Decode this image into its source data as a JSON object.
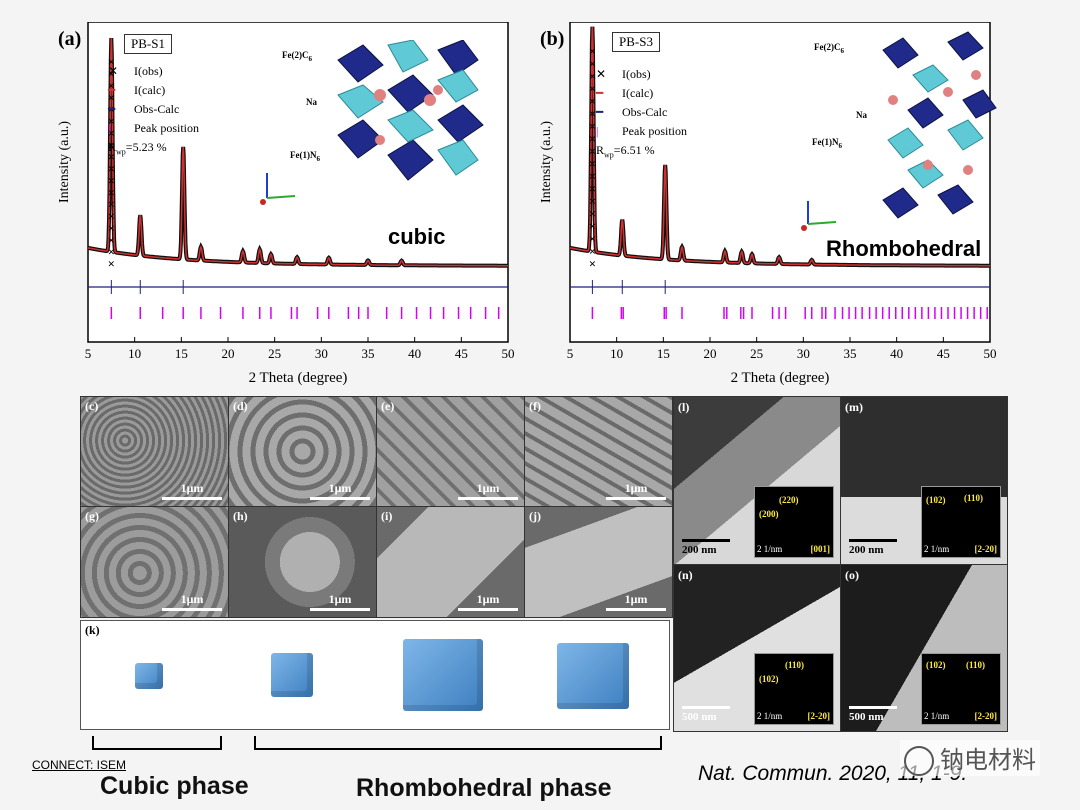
{
  "panels": {
    "a": {
      "letter": "(a)",
      "sample": "PB-S1",
      "legend": [
        "I(obs)",
        "I(calc)",
        "Obs-Calc",
        "Peak position"
      ],
      "rwp_label": "R",
      "rwp_sub": "wp",
      "rwp_value": "=5.23 %",
      "structure_labels": [
        "Fe(2)C",
        "6",
        "Na",
        "Fe(1)N",
        "6"
      ],
      "phase_label": "cubic",
      "ylabel": "Intensity (a.u.)",
      "xlabel": "2 Theta (degree)"
    },
    "b": {
      "letter": "(b)",
      "sample": "PB-S3",
      "legend": [
        "I(obs)",
        "I(calc)",
        "Obs-Calc",
        "Peak position"
      ],
      "rwp_label": "R",
      "rwp_sub": "wp",
      "rwp_value": "=6.51 %",
      "structure_labels": [
        "Fe(2)C",
        "6",
        "Na",
        "Fe(1)N",
        "6"
      ],
      "phase_label": "Rhombohedral",
      "ylabel": "Intensity (a.u.)",
      "xlabel": "2 Theta (degree)"
    },
    "sem": [
      {
        "letter": "(c)",
        "scale": "1μm"
      },
      {
        "letter": "(d)",
        "scale": "1μm"
      },
      {
        "letter": "(e)",
        "scale": "1μm"
      },
      {
        "letter": "(f)",
        "scale": "1μm"
      },
      {
        "letter": "(g)",
        "scale": "1μm"
      },
      {
        "letter": "(h)",
        "scale": "1μm"
      },
      {
        "letter": "(i)",
        "scale": "1μm"
      },
      {
        "letter": "(j)",
        "scale": "1μm"
      }
    ],
    "k": {
      "letter": "(k)"
    },
    "tem": [
      {
        "letter": "(l)",
        "scale": "200 nm",
        "saed": [
          "(220)",
          "(200)"
        ],
        "saed_scale": "2 1/nm",
        "zone": "[001]"
      },
      {
        "letter": "(m)",
        "scale": "200 nm",
        "saed": [
          "(102)",
          "(110)"
        ],
        "saed_scale": "2 1/nm",
        "zone": "[2-20]"
      },
      {
        "letter": "(n)",
        "scale": "500 nm",
        "saed": [
          "(110)",
          "(102)"
        ],
        "saed_scale": "2 1/nm",
        "zone": "[2-20]"
      },
      {
        "letter": "(o)",
        "scale": "500 nm",
        "saed": [
          "(102)",
          "(110)"
        ],
        "saed_scale": "2 1/nm",
        "zone": "[2-20]"
      }
    ]
  },
  "footer": {
    "connect": "CONNECT: ISEM",
    "cubic_phase": "Cubic phase",
    "rhombo_phase": "Rhombohedral phase",
    "citation": "Nat. Commun. 2020, 11, 1-9.",
    "watermark": "钠电材料"
  },
  "chart_data": [
    {
      "type": "line",
      "title": "PB-S1",
      "xlabel": "2 Theta (degree)",
      "ylabel": "Intensity (a.u.)",
      "xlim": [
        5,
        50
      ],
      "xticks": [
        5,
        10,
        15,
        20,
        25,
        30,
        35,
        40,
        45,
        50
      ],
      "peaks": [
        {
          "x": 7.5,
          "h": 0.95
        },
        {
          "x": 10.6,
          "h": 0.18
        },
        {
          "x": 15.2,
          "h": 0.5
        },
        {
          "x": 17.1,
          "h": 0.06
        },
        {
          "x": 21.6,
          "h": 0.05
        },
        {
          "x": 23.4,
          "h": 0.06
        },
        {
          "x": 24.6,
          "h": 0.04
        },
        {
          "x": 27.4,
          "h": 0.03
        },
        {
          "x": 30.8,
          "h": 0.03
        },
        {
          "x": 35.0,
          "h": 0.02
        },
        {
          "x": 38.6,
          "h": 0.02
        }
      ],
      "peak_positions": [
        7.5,
        10.6,
        13.0,
        15.2,
        17.1,
        19.2,
        21.6,
        23.4,
        24.6,
        26.8,
        27.4,
        29.6,
        30.8,
        32.9,
        34.0,
        35.0,
        37.0,
        38.6,
        40.2,
        41.7,
        43.1,
        44.7,
        46.0,
        47.6,
        49.0
      ]
    },
    {
      "type": "line",
      "title": "PB-S3",
      "xlabel": "2 Theta (degree)",
      "ylabel": "Intensity (a.u.)",
      "xlim": [
        5,
        50
      ],
      "xticks": [
        5,
        10,
        15,
        20,
        25,
        30,
        35,
        40,
        45,
        50
      ],
      "peaks": [
        {
          "x": 7.4,
          "h": 1.0
        },
        {
          "x": 10.6,
          "h": 0.16
        },
        {
          "x": 15.2,
          "h": 0.42
        },
        {
          "x": 17.0,
          "h": 0.06
        },
        {
          "x": 21.6,
          "h": 0.05
        },
        {
          "x": 23.4,
          "h": 0.05
        },
        {
          "x": 24.5,
          "h": 0.04
        },
        {
          "x": 27.4,
          "h": 0.03
        },
        {
          "x": 30.9,
          "h": 0.02
        }
      ],
      "peak_positions": [
        7.4,
        10.5,
        10.7,
        15.1,
        15.3,
        17.0,
        21.5,
        21.8,
        23.3,
        23.6,
        24.5,
        26.7,
        27.4,
        28.1,
        30.2,
        30.9,
        32.0,
        32.4,
        33.4,
        34.2,
        34.9,
        35.6,
        36.3,
        37.1,
        37.8,
        38.5,
        39.2,
        39.9,
        40.6,
        41.3,
        42.0,
        42.7,
        43.4,
        44.1,
        44.8,
        45.5,
        46.2,
        46.9,
        47.6,
        48.3,
        49.0,
        49.7
      ]
    }
  ]
}
